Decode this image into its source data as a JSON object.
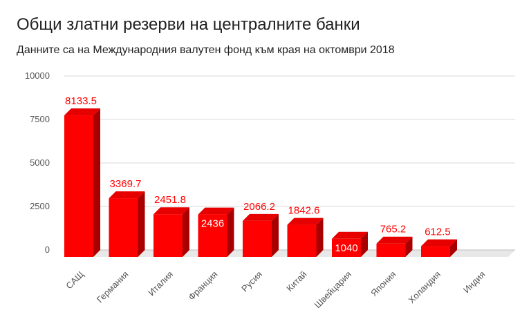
{
  "title": "Общи златни резерви на централните банки",
  "subtitle": "Данните са на Международния валутен фонд към края на октомври 2018",
  "chart_data": {
    "type": "bar",
    "title": "Общи златни резерви на централните банки",
    "subtitle": "Данните са на Международния валутен фонд към края на октомври 2018",
    "xlabel": "",
    "ylabel": "",
    "categories": [
      "САЩ",
      "Германия",
      "Италия",
      "Франция",
      "Русия",
      "Китай",
      "Швейцария",
      "Япония",
      "Холандия",
      "Индия"
    ],
    "values": [
      8133.5,
      3369.7,
      2451.8,
      2436,
      2066.2,
      1842.6,
      1040,
      765.2,
      612.5,
      null
    ],
    "data_labels": [
      "8133.5",
      "3369.7",
      "2451.8",
      "2436",
      "2066.2",
      "1842.6",
      "1040",
      "765.2",
      "612.5",
      ""
    ],
    "ylim": [
      0,
      10000
    ],
    "yticks": [
      "0",
      "2500",
      "5000",
      "7500",
      "10000"
    ],
    "grid": true,
    "legend": "none",
    "colors": {
      "bar_front": "#ff0000",
      "bar_side": "#a80000",
      "bar_top": "#e60000",
      "label": "#ff0000",
      "label_inside": "#ffffff",
      "grid": "#d9d9d9",
      "floor": "#e8e8e8"
    }
  }
}
